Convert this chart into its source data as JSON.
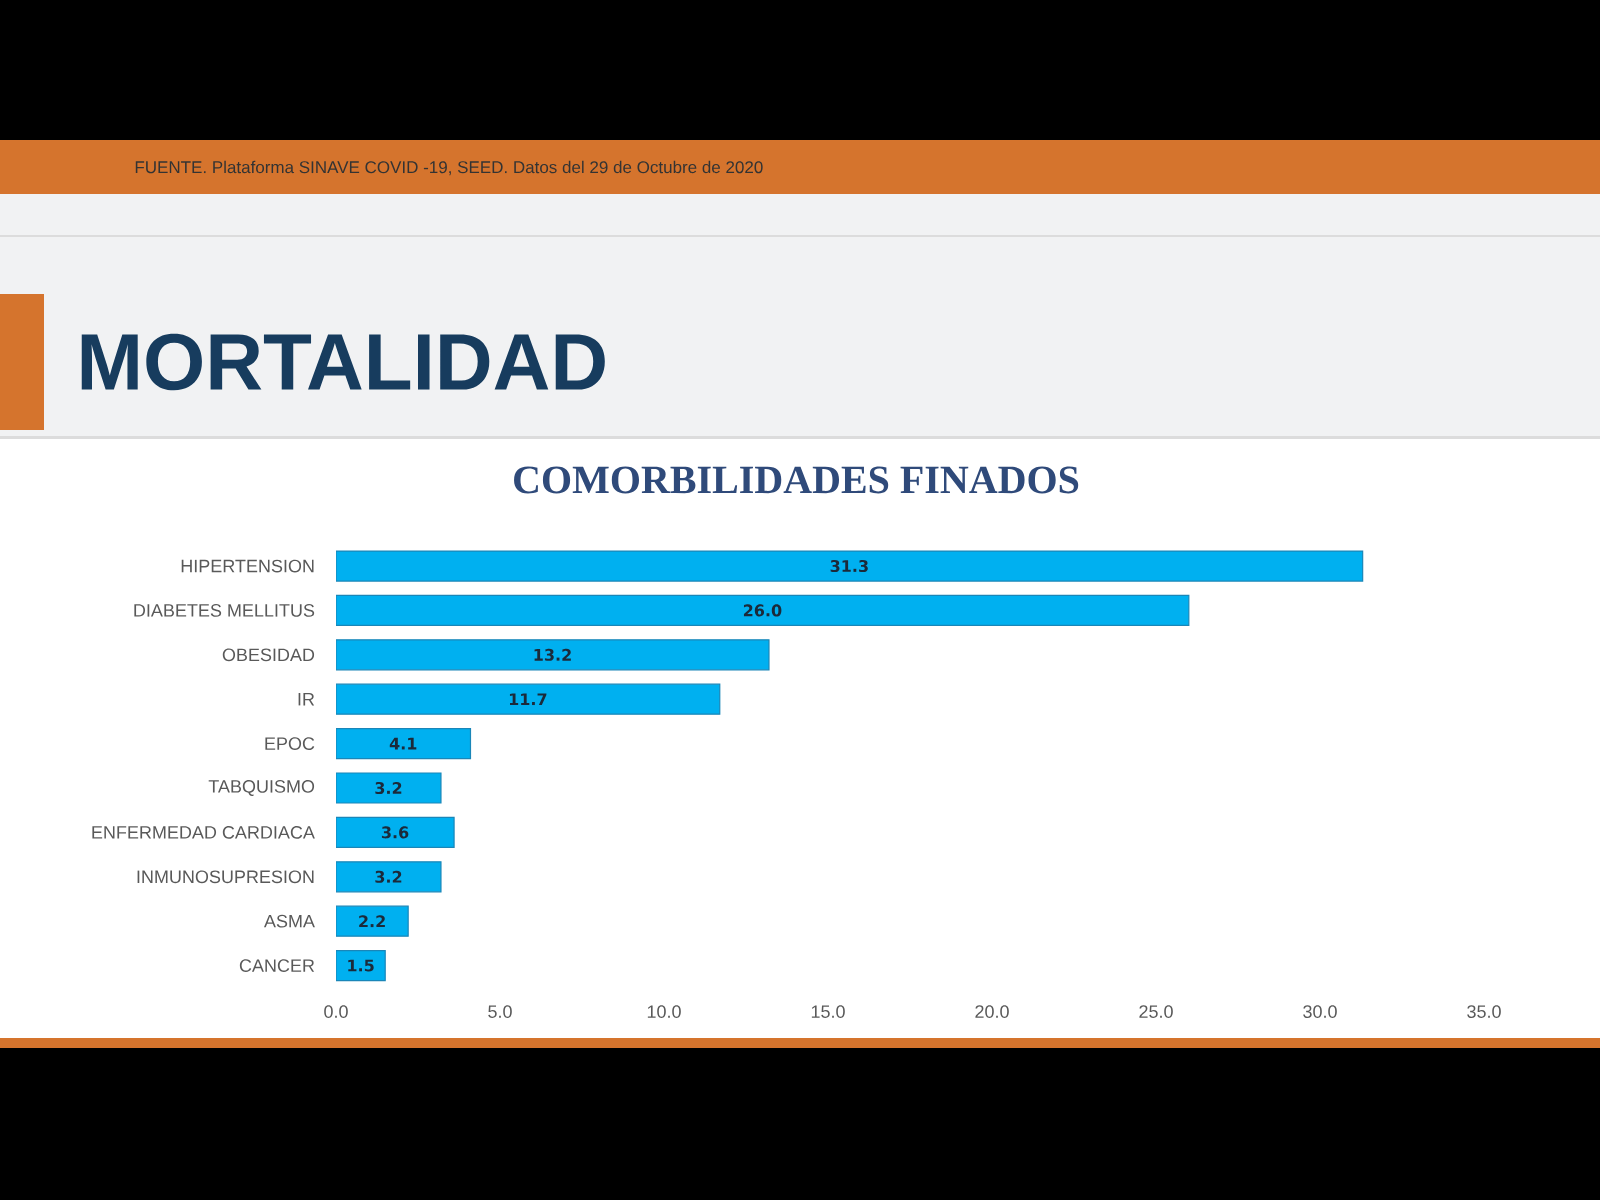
{
  "chart_data": {
    "type": "bar",
    "orientation": "horizontal",
    "title": "MORTALIDAD",
    "subtitle": "COMORBILIDADES FINADOS",
    "categories": [
      "HIPERTENSION",
      "DIABETES MELLITUS",
      "OBESIDAD",
      "IR",
      "EPOC",
      "TABQUISMO",
      "ENFERMEDAD CARDIACA",
      "INMUNOSUPRESION",
      "ASMA",
      "CANCER"
    ],
    "values": [
      31.3,
      26.0,
      13.2,
      11.7,
      4.1,
      3.2,
      3.6,
      3.2,
      2.2,
      1.5
    ],
    "color": "#00b0f0",
    "value_labels": [
      "31.3",
      "26.0",
      "13.2",
      "11.7",
      "4.1",
      "3.2",
      "3.6",
      "3.2",
      "2.2",
      "1.5"
    ],
    "xlim": [
      0,
      35
    ],
    "xticks": [
      {
        "value": 0,
        "label": "0.0"
      },
      {
        "value": 5,
        "label": "5.0"
      },
      {
        "value": 10,
        "label": "10.0"
      },
      {
        "value": 15,
        "label": "15.0"
      },
      {
        "value": 20,
        "label": "20.0"
      },
      {
        "value": 25,
        "label": "25.0"
      },
      {
        "value": 30,
        "label": "30.0"
      },
      {
        "value": 35,
        "label": "35.0"
      }
    ],
    "annotations": [
      "FUENTE. Plataforma SINAVE COVID -19, SEED. Datos del 29 de Octubre de 2020"
    ]
  }
}
